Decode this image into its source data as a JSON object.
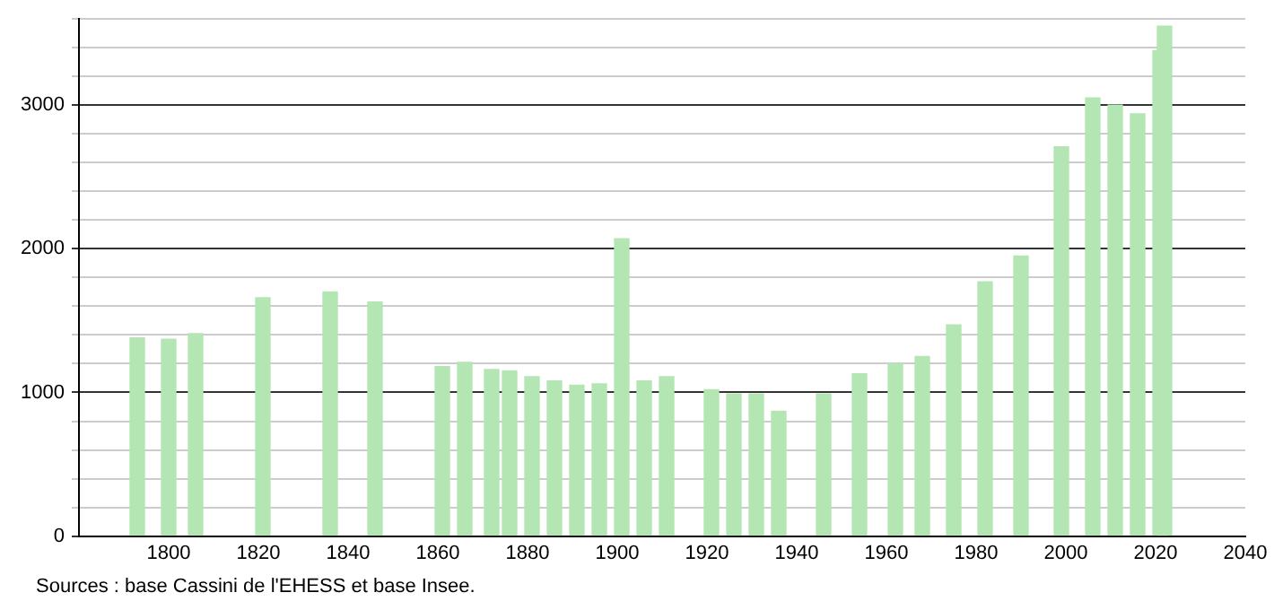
{
  "chart_data": {
    "type": "bar",
    "color": "#b3e6b3",
    "x": [
      1793,
      1800,
      1806,
      1821,
      1836,
      1846,
      1861,
      1866,
      1872,
      1876,
      1881,
      1886,
      1891,
      1896,
      1901,
      1906,
      1911,
      1921,
      1926,
      1931,
      1936,
      1946,
      1954,
      1962,
      1968,
      1975,
      1982,
      1990,
      1999,
      2006,
      2011,
      2016,
      2021,
      2022
    ],
    "values": [
      1380,
      1370,
      1410,
      1660,
      1700,
      1630,
      1180,
      1210,
      1160,
      1150,
      1110,
      1080,
      1050,
      1060,
      2070,
      1080,
      1110,
      1020,
      990,
      990,
      870,
      990,
      1130,
      1200,
      1250,
      1470,
      1770,
      1950,
      2710,
      3050,
      3000,
      2940,
      3380,
      3550
    ],
    "xlim": [
      1780,
      2040
    ],
    "xticks": [
      1800,
      1820,
      1840,
      1860,
      1880,
      1900,
      1920,
      1940,
      1960,
      1980,
      2000,
      2020,
      2040
    ],
    "ylim": [
      0,
      3600
    ],
    "yticks": [
      0,
      {
        "value": 200,
        "label": null
      },
      {
        "value": 400,
        "label": null
      },
      {
        "value": 600,
        "label": null
      },
      {
        "value": 800,
        "label": null
      },
      1000,
      {
        "value": 1200,
        "label": null
      },
      {
        "value": 1400,
        "label": null
      },
      {
        "value": 1600,
        "label": null
      },
      {
        "value": 1800,
        "label": null
      },
      2000,
      {
        "value": 2200,
        "label": null
      },
      {
        "value": 2400,
        "label": null
      },
      {
        "value": 2600,
        "label": null
      },
      {
        "value": 2800,
        "label": null
      },
      3000,
      {
        "value": 3200,
        "label": null
      },
      {
        "value": 3400,
        "label": null
      },
      {
        "value": 3600,
        "label": null
      }
    ],
    "grid": "y",
    "legend": false,
    "annotations": [
      "Sources : base Cassini de l'EHESS et base Insee."
    ]
  }
}
